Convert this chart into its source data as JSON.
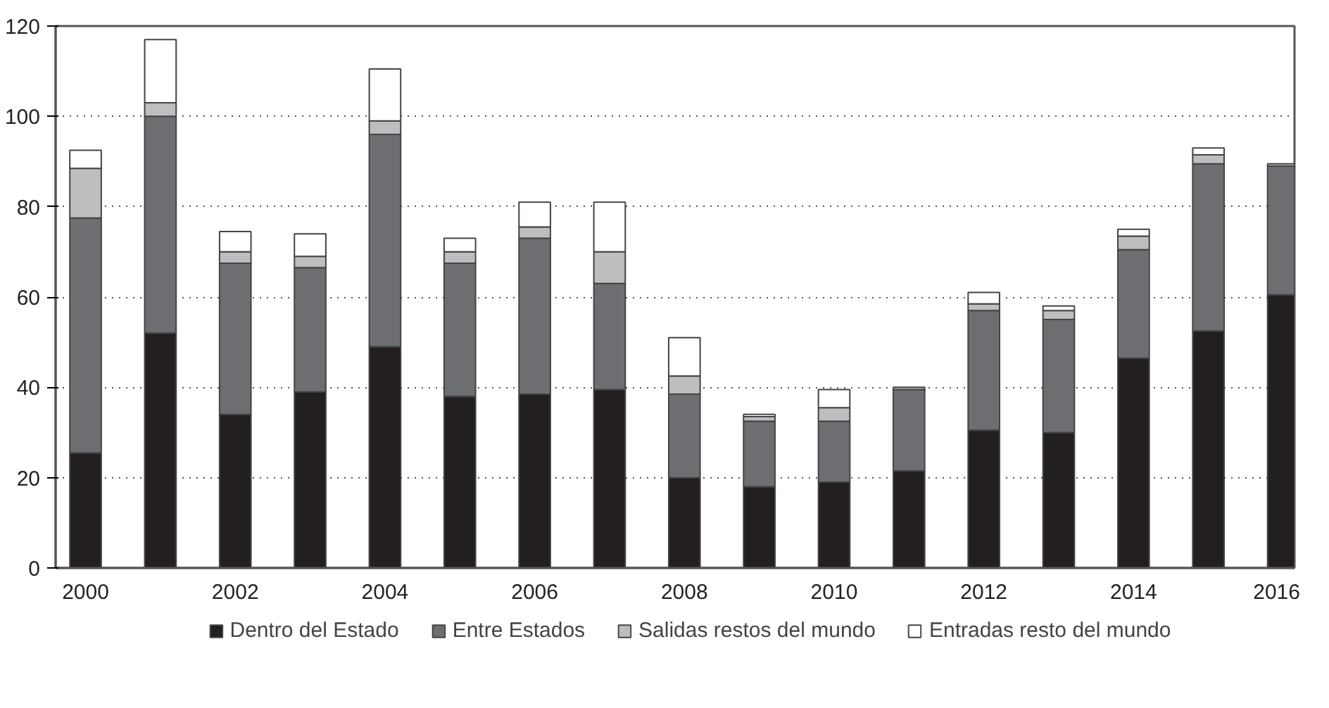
{
  "chart_data": {
    "type": "bar",
    "stacked": true,
    "x": [
      2000,
      2001,
      2002,
      2003,
      2004,
      2005,
      2006,
      2007,
      2008,
      2009,
      2010,
      2011,
      2012,
      2013,
      2014,
      2015,
      2016
    ],
    "series": [
      {
        "name": "Dentro del Estado",
        "color": "#231f20",
        "values": [
          25.5,
          52,
          34,
          39,
          49,
          38,
          38.5,
          39.5,
          20,
          18,
          19,
          21.5,
          30.5,
          30,
          46.5,
          52.5,
          60.5
        ]
      },
      {
        "name": "Entre Estados",
        "color": "#6d6e71",
        "values": [
          52,
          48,
          33.5,
          27.5,
          47,
          29.5,
          34.5,
          23.5,
          18.5,
          14.5,
          13.5,
          18,
          26.5,
          25,
          24,
          37,
          28.5
        ]
      },
      {
        "name": "Salidas restos del mundo",
        "color": "#bcbec0",
        "values": [
          11,
          3,
          2.5,
          2.5,
          3,
          2.5,
          2.5,
          7,
          4,
          1,
          3,
          0.5,
          1.5,
          2,
          3,
          2,
          0.5
        ]
      },
      {
        "name": "Entradas resto del mundo",
        "color": "#ffffff",
        "values": [
          4,
          14,
          4.5,
          5,
          11.5,
          3,
          5.5,
          11,
          8.5,
          0.5,
          4,
          null,
          2.5,
          1,
          1.5,
          1.5,
          null
        ]
      }
    ],
    "xlim": [
      1999.6,
      2016.15
    ],
    "xticks": [
      2000,
      2002,
      2004,
      2006,
      2008,
      2010,
      2012,
      2014,
      2016
    ],
    "ylim": [
      0,
      120
    ],
    "yticks": [
      0,
      20,
      40,
      60,
      80,
      100,
      120
    ],
    "grid": "y",
    "legend": "bottom"
  }
}
